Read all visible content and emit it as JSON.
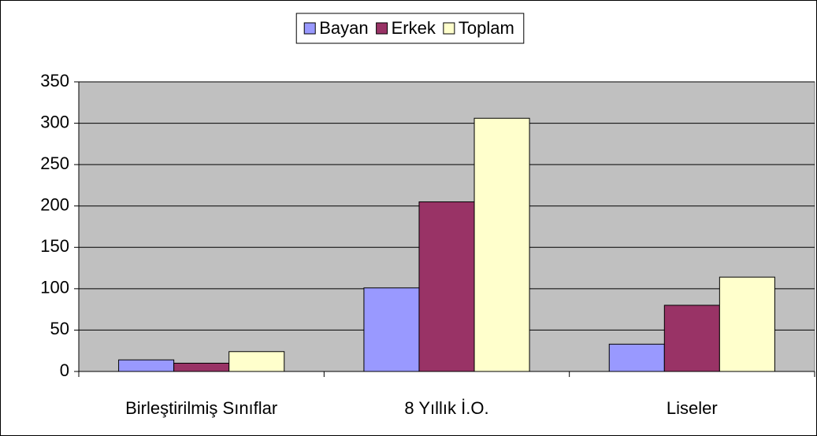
{
  "chart_data": {
    "type": "bar",
    "categories": [
      "Birleştirilmiş Sınıflar",
      "8 Yıllık İ.O.",
      "Liseler"
    ],
    "series": [
      {
        "name": "Bayan",
        "color": "#9999ff",
        "values": [
          14,
          101,
          33
        ]
      },
      {
        "name": "Erkek",
        "color": "#993366",
        "values": [
          10,
          205,
          80
        ]
      },
      {
        "name": "Toplam",
        "color": "#ffffcc",
        "values": [
          24,
          306,
          114
        ]
      }
    ],
    "ylim": [
      0,
      350
    ],
    "yticks": [
      0,
      50,
      100,
      150,
      200,
      250,
      300,
      350
    ],
    "grid": true,
    "legend": "top",
    "plot_background": "#c0c0c0"
  }
}
